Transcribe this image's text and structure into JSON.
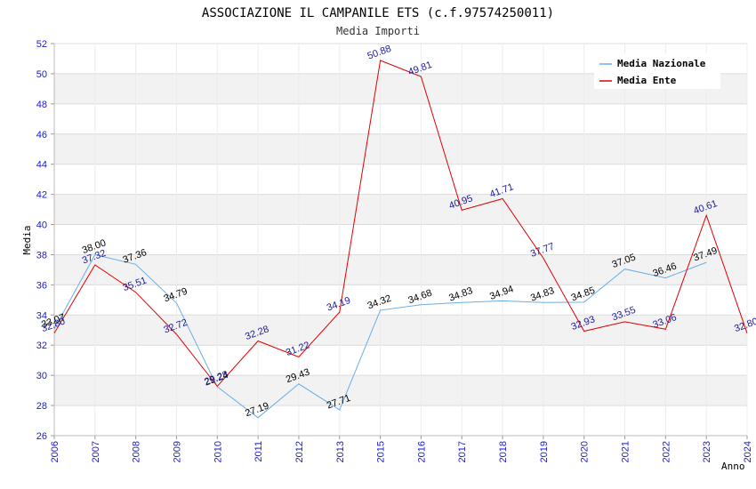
{
  "chart_data": {
    "type": "line",
    "title": "ASSOCIAZIONE IL CAMPANILE ETS (c.f.97574250011)",
    "subtitle": "Media Importi",
    "xlabel": "Anno",
    "ylabel": "Media",
    "ylim": [
      26,
      52
    ],
    "yticks": [
      "26",
      "28",
      "30",
      "32",
      "34",
      "36",
      "38",
      "40",
      "42",
      "44",
      "46",
      "48",
      "50",
      "52"
    ],
    "x": [
      "2006",
      "2007",
      "2008",
      "2009",
      "2010",
      "2011",
      "2012",
      "2013",
      "2015",
      "2016",
      "2017",
      "2018",
      "2019",
      "2020",
      "2021",
      "2022",
      "2023",
      "2024"
    ],
    "legend_position": "top-right",
    "series": [
      {
        "name": "Media Nazionale",
        "color": "#6aaee8",
        "values": [
          33.07,
          38.0,
          37.36,
          34.79,
          29.24,
          27.19,
          29.43,
          27.71,
          34.32,
          34.68,
          34.83,
          34.94,
          34.83,
          34.85,
          37.05,
          36.46,
          37.49,
          null
        ],
        "labels": [
          "33.07",
          "38.00",
          "37.36",
          "34.79",
          "29.24",
          "27.19",
          "29.43",
          "27.71",
          "34.32",
          "34.68",
          "34.83",
          "34.94",
          "34.83",
          "34.85",
          "37.05",
          "36.46",
          "37.49",
          ""
        ]
      },
      {
        "name": "Media Ente",
        "color": "#e00000",
        "values": [
          32.8,
          37.32,
          35.51,
          32.72,
          29.28,
          32.28,
          31.22,
          34.19,
          50.88,
          49.81,
          40.95,
          41.71,
          37.77,
          32.93,
          33.55,
          33.06,
          40.61,
          32.8
        ],
        "labels": [
          "32.80",
          "37.32",
          "35.51",
          "32.72",
          "29.28",
          "32.28",
          "31.22",
          "34.19",
          "50.88",
          "49.81",
          "40.95",
          "41.71",
          "37.77",
          "32.93",
          "33.55",
          "33.06",
          "40.61",
          "32.80"
        ]
      }
    ]
  }
}
